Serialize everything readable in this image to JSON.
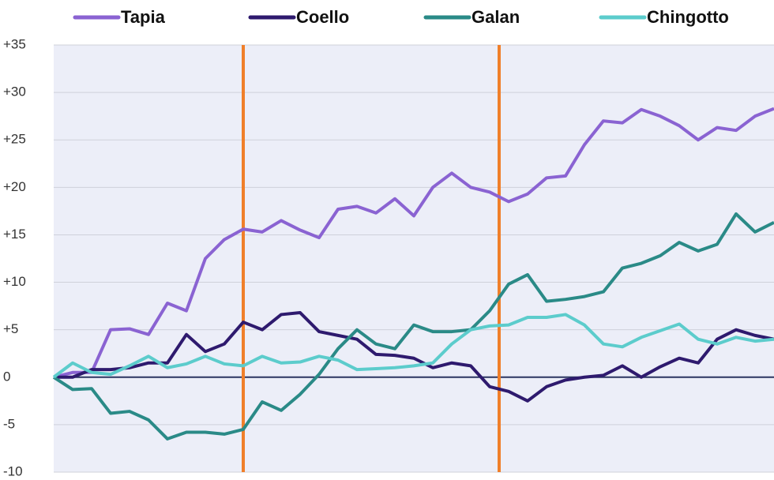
{
  "chart_data": {
    "type": "line",
    "x": [
      0,
      4,
      8,
      12,
      16,
      20,
      24,
      28,
      32,
      36,
      40,
      44,
      48,
      52,
      56,
      60,
      64,
      68,
      72,
      76,
      80,
      84,
      88,
      92,
      96,
      100,
      104,
      108,
      112,
      116,
      120,
      124,
      128,
      132,
      136,
      140,
      144,
      148,
      152
    ],
    "xlim": [
      0,
      152
    ],
    "ylim": [
      -10,
      35
    ],
    "yticks": [
      {
        "value": -10,
        "label": "-10"
      },
      -5,
      0,
      {
        "value": 5,
        "label": "+5"
      },
      {
        "value": 10,
        "label": "+10"
      },
      {
        "value": 15,
        "label": "+15"
      },
      {
        "value": 20,
        "label": "+20"
      },
      {
        "value": 25,
        "label": "+25"
      },
      {
        "value": 30,
        "label": "+30"
      },
      {
        "value": 35,
        "label": "+35"
      }
    ],
    "grid": true,
    "vlines": [
      40,
      94
    ],
    "vline_color": "#f07f2a",
    "legend": "top",
    "series": [
      {
        "name": "Tapia",
        "color": "#8a63d2",
        "values": [
          0,
          0.5,
          0.5,
          5,
          5.1,
          4.5,
          7.8,
          7,
          12.5,
          14.5,
          15.6,
          15.3,
          16.5,
          15.5,
          14.7,
          17.7,
          18,
          17.3,
          18.8,
          17,
          20,
          21.5,
          20,
          19.5,
          18.5,
          19.3,
          21,
          21.2,
          24.5,
          27,
          26.8,
          28.2,
          27.5,
          26.5,
          25,
          26.3,
          26,
          27.5,
          28.3
        ]
      },
      {
        "name": "Coello",
        "color": "#2e1a6e",
        "values": [
          0,
          0,
          0.8,
          0.8,
          1,
          1.5,
          1.5,
          4.5,
          2.7,
          3.5,
          5.8,
          5,
          6.6,
          6.8,
          4.8,
          4.4,
          4,
          2.4,
          2.3,
          2,
          1,
          1.5,
          1.2,
          -1,
          -1.5,
          -2.5,
          -1,
          -0.3,
          0,
          0.2,
          1.2,
          0,
          1.1,
          2,
          1.5,
          4,
          5,
          4.4,
          4
        ]
      },
      {
        "name": "Galan",
        "color": "#2a8a87",
        "values": [
          0,
          -1.3,
          -1.2,
          -3.8,
          -3.6,
          -4.5,
          -6.5,
          -5.8,
          -5.8,
          -6,
          -5.5,
          -2.6,
          -3.5,
          -1.8,
          0.3,
          3,
          5,
          3.5,
          3,
          5.5,
          4.8,
          4.8,
          5,
          7,
          9.8,
          10.8,
          8,
          8.2,
          8.5,
          9,
          11.5,
          12,
          12.8,
          14.2,
          13.3,
          14,
          17.2,
          15.3,
          16.3
        ]
      },
      {
        "name": "Chingotto",
        "color": "#5ccccc",
        "values": [
          0,
          1.5,
          0.5,
          0.3,
          1.2,
          2.2,
          1,
          1.4,
          2.2,
          1.4,
          1.2,
          2.2,
          1.5,
          1.6,
          2.2,
          1.8,
          0.8,
          0.9,
          1,
          1.2,
          1.5,
          3.5,
          5,
          5.4,
          5.5,
          6.3,
          6.3,
          6.6,
          5.5,
          3.5,
          3.2,
          4.2,
          4.9,
          5.6,
          4,
          3.5,
          4.2,
          3.8,
          4
        ]
      }
    ]
  }
}
